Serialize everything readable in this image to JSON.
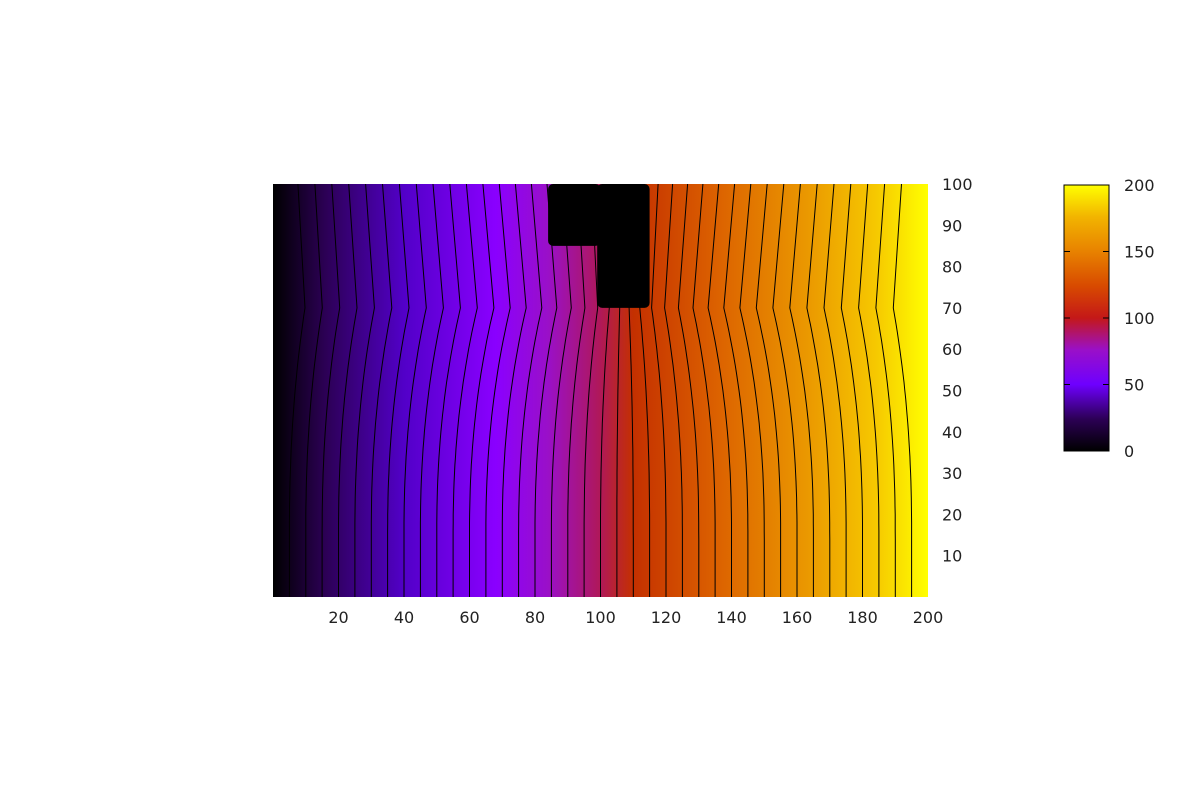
{
  "chart_data": {
    "type": "heatmap",
    "title": "",
    "xlabel": "",
    "ylabel": "",
    "xlim": [
      0,
      200
    ],
    "ylim": [
      0,
      100
    ],
    "x_ticks": [
      20,
      40,
      60,
      80,
      100,
      120,
      140,
      160,
      180,
      200
    ],
    "y_ticks": [
      10,
      20,
      30,
      40,
      50,
      60,
      70,
      80,
      90,
      100
    ],
    "y_axis_side": "right",
    "grid": false,
    "colorbar": {
      "range": [
        0,
        200
      ],
      "ticks": [
        0,
        50,
        100,
        150,
        200
      ],
      "placement": "right",
      "colormap": [
        "#000000",
        "#3a0079",
        "#8a00ff",
        "#9d20b0",
        "#c43a00",
        "#e07000",
        "#f0a400",
        "#ffff00"
      ]
    },
    "field": {
      "description_values": "potential increasing left to right from 0 at x=0 to 200 at x=200, with contour lines every 5 units",
      "contour_step": 5,
      "left_value": 0,
      "right_value": 200
    },
    "masked_regions": [
      {
        "x": [
          84,
          100
        ],
        "y": [
          85,
          100
        ]
      },
      {
        "x": [
          99,
          115
        ],
        "y": [
          70,
          100
        ]
      }
    ]
  }
}
